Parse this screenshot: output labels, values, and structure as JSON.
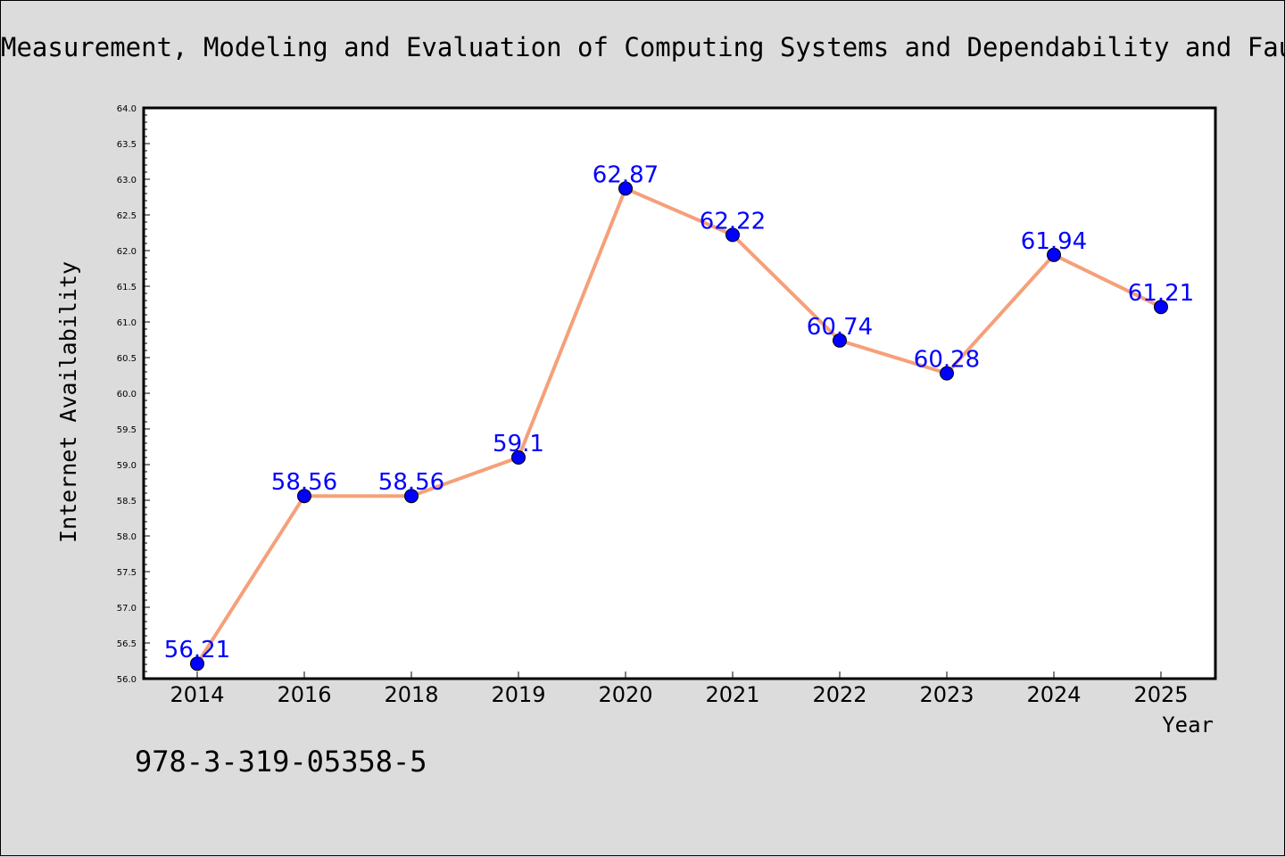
{
  "chart_data": {
    "type": "line",
    "title": "Measurement, Modeling and Evaluation of Computing Systems and Dependability and Fault Tolerance",
    "xlabel": "Year",
    "ylabel": "Internet Availability",
    "categories": [
      "2014",
      "2016",
      "2018",
      "2019",
      "2020",
      "2021",
      "2022",
      "2023",
      "2024",
      "2025"
    ],
    "series": [
      {
        "values": [
          56.21,
          58.56,
          58.56,
          59.1,
          62.87,
          62.22,
          60.74,
          60.28,
          61.94,
          61.21
        ],
        "labels": [
          "56.21",
          "58.56",
          "58.56",
          "59.1",
          "62.87",
          "62.22",
          "60.74",
          "60.28",
          "61.94",
          "61.21"
        ],
        "line_color": "#f5a07a",
        "marker_color": "#0000ff"
      }
    ],
    "ylim": [
      56.0,
      64.0
    ],
    "yticks": [
      "56.0",
      "56.5",
      "57.0",
      "57.5",
      "58.0",
      "58.5",
      "59.0",
      "59.5",
      "60.0",
      "60.5",
      "61.0",
      "61.5",
      "62.0",
      "62.5",
      "63.0",
      "63.5",
      "64.0"
    ],
    "grid": false,
    "legend": "none",
    "annotation": "978-3-319-05358-5",
    "label_color": "#0000ff",
    "background": "#dcdcdc"
  }
}
